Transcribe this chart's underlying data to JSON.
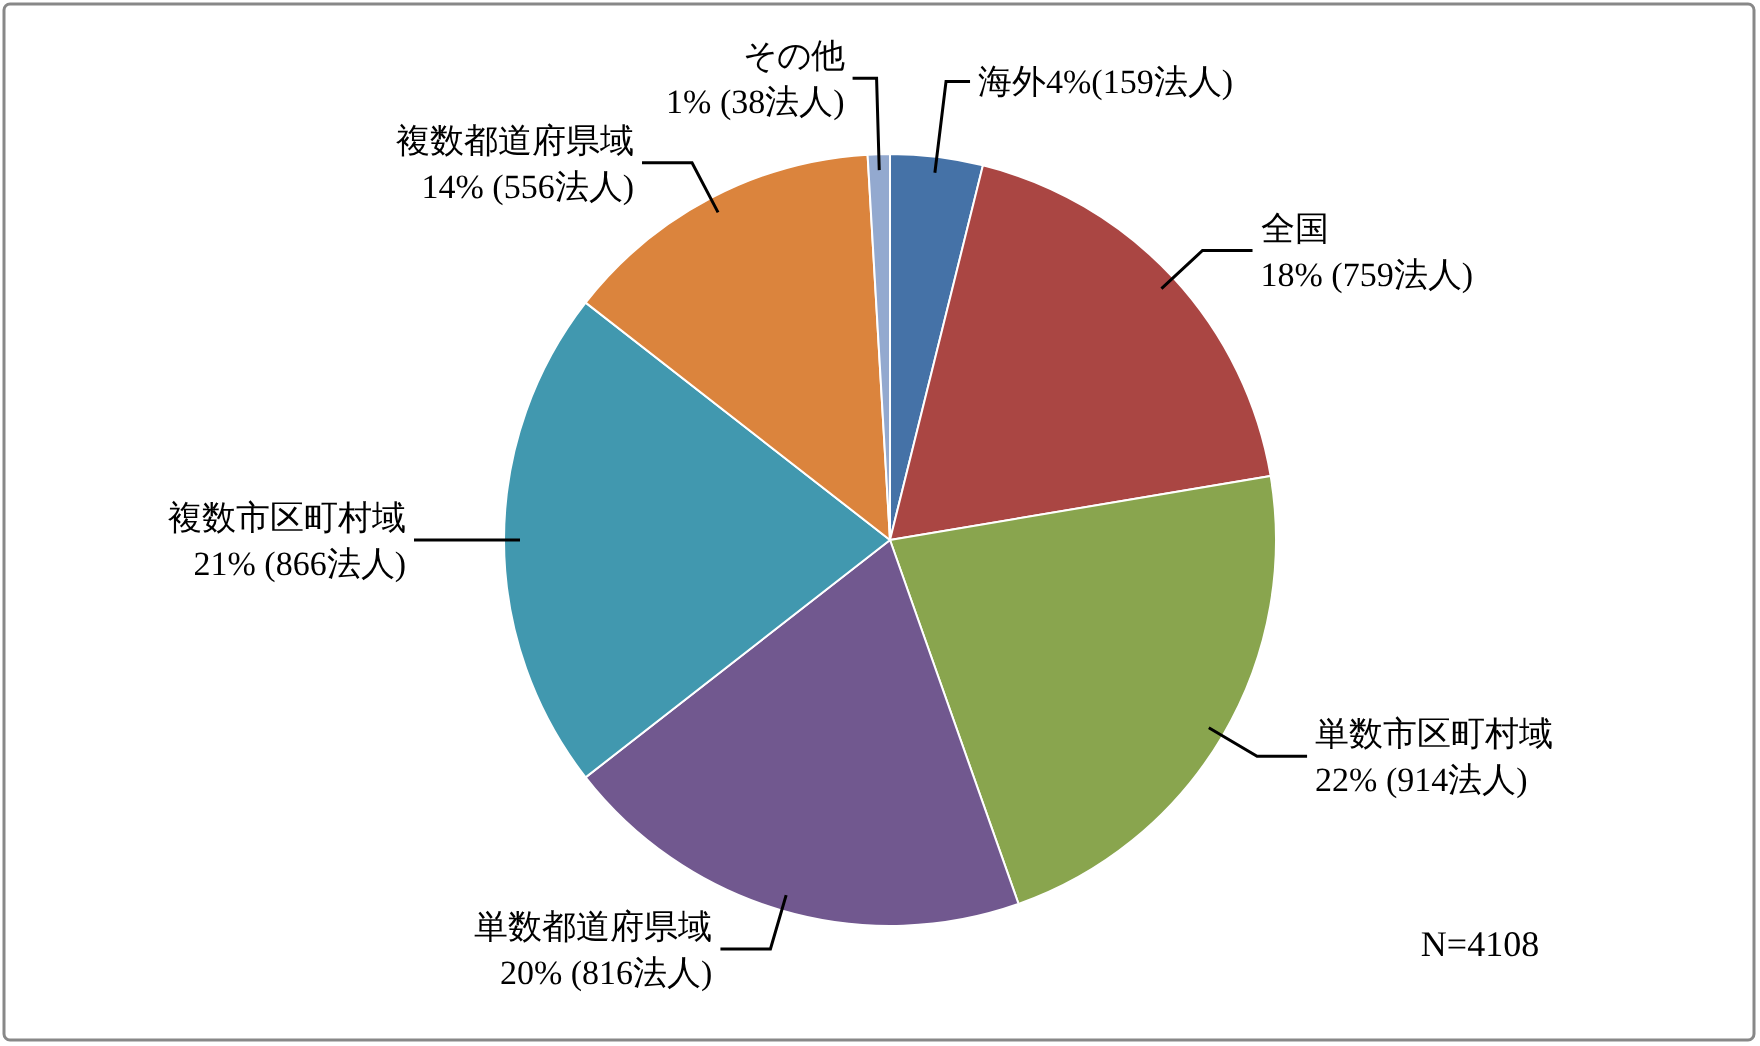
{
  "chart_data": {
    "type": "pie",
    "categories": [
      "海外",
      "全国",
      "単数市区町村域",
      "単数都道府県域",
      "複数市区町村域",
      "複数都道府県域",
      "その他"
    ],
    "values": [
      159,
      759,
      914,
      816,
      866,
      556,
      38
    ],
    "colors": [
      "#4572a7",
      "#aa4643",
      "#89a54e",
      "#71588f",
      "#4198af",
      "#db843d",
      "#93a9cf"
    ],
    "value_labels": [
      "4%(159法人)",
      "18% (759法人)",
      "22% (914法人)",
      "20% (816法人)",
      "21% (866法人)",
      "14% (556法人)",
      "1% (38法人)"
    ],
    "annotations": [
      "N=4108"
    ]
  }
}
